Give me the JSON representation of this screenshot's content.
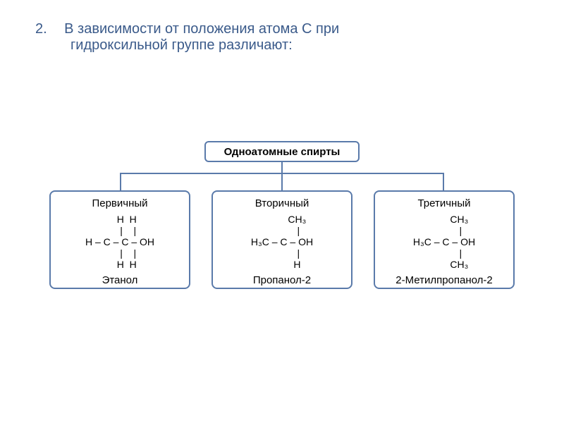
{
  "header": {
    "number": "2.",
    "line1": "В зависимости от положения атома С при",
    "line2": "гидроксильной группе различают:"
  },
  "diagram": {
    "root": "Одноатомные спирты",
    "children": [
      {
        "title": "Первичный",
        "formula_lines": [
          "     H  H",
          "      |    |",
          "H – C – C – OH",
          "      |    |",
          "     H  H"
        ],
        "name": "Этанол"
      },
      {
        "title": "Вторичный",
        "formula_lines": [
          "           CH₃",
          "            |",
          "H₃C – C – OH",
          "            |",
          "           H"
        ],
        "name": "Пропанол-2"
      },
      {
        "title": "Третичный",
        "formula_lines": [
          "           CH₃",
          "            |",
          "H₃C – C – OH",
          "            |",
          "           CH₃"
        ],
        "name": "2-Метилпропанол-2"
      }
    ]
  },
  "colors": {
    "text_header": "#3a5a8a",
    "border": "#5a7aaa",
    "background": "#ffffff"
  },
  "fonts": {
    "header_size": 20,
    "title_size": 15,
    "formula_size": 14
  }
}
